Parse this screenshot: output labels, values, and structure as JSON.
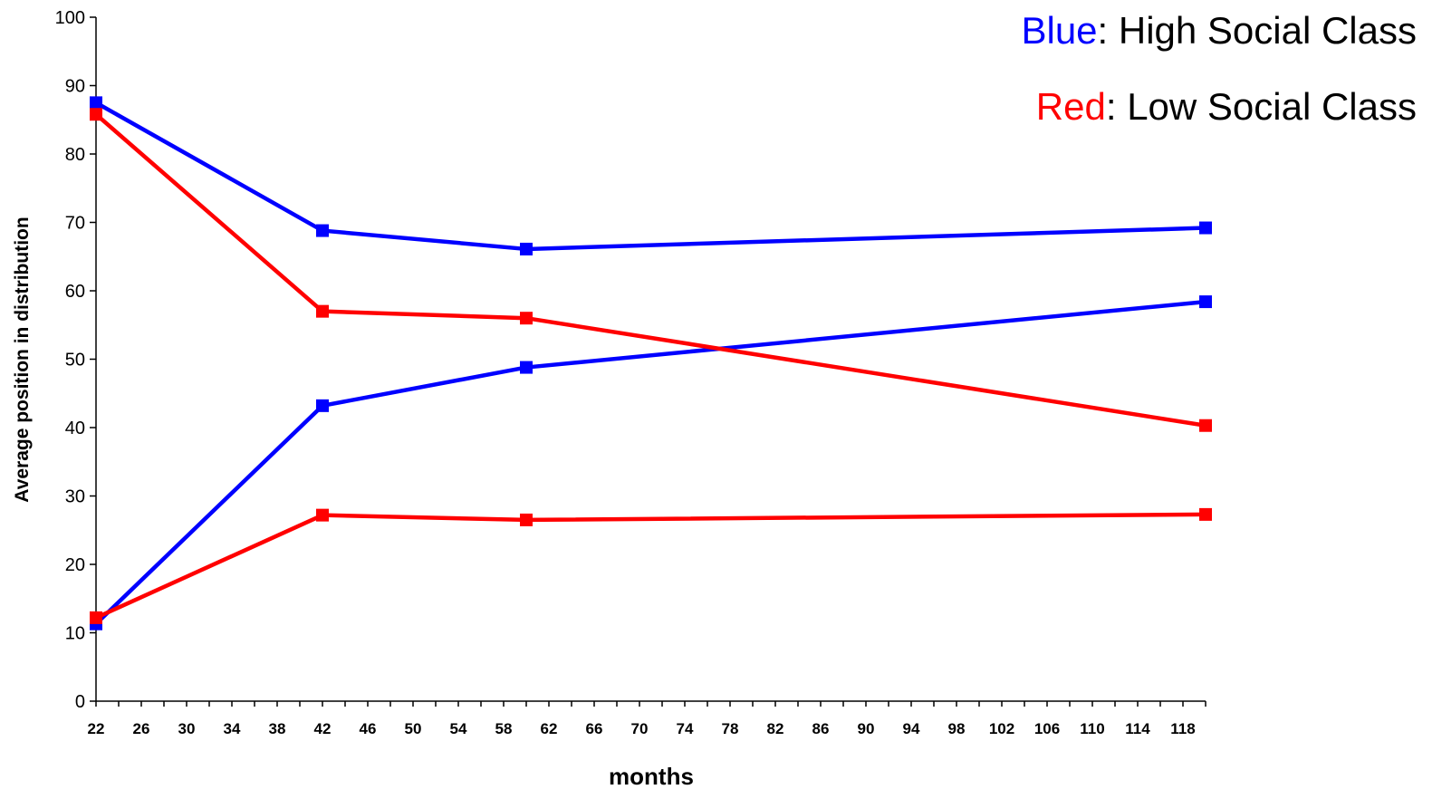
{
  "chart_data": {
    "type": "line",
    "title": "",
    "xlabel": "months",
    "ylabel": "Average position in distribution",
    "xlim": [
      22,
      120
    ],
    "ylim": [
      0,
      100
    ],
    "x_ticks": [
      22,
      26,
      30,
      34,
      38,
      42,
      46,
      50,
      54,
      58,
      62,
      66,
      70,
      74,
      78,
      82,
      86,
      90,
      94,
      98,
      102,
      106,
      110,
      114,
      118
    ],
    "y_ticks": [
      0,
      10,
      20,
      30,
      40,
      50,
      60,
      70,
      80,
      90,
      100
    ],
    "grid": false,
    "legend_placement": "top-right",
    "legend": [
      {
        "key": "Blue",
        "text": ": High Social Class",
        "color": "#0000ff"
      },
      {
        "key": "Red",
        "text": ": Low Social Class",
        "color": "#ff0000"
      }
    ],
    "series": [
      {
        "color": "#0000ff",
        "x": [
          22,
          42,
          60,
          120
        ],
        "values": [
          87.5,
          68.8,
          66.1,
          69.2
        ]
      },
      {
        "color": "#0000ff",
        "x": [
          22,
          42,
          60,
          120
        ],
        "values": [
          11.3,
          43.2,
          48.8,
          58.4
        ]
      },
      {
        "color": "#ff0000",
        "x": [
          22,
          42,
          60,
          120
        ],
        "values": [
          85.8,
          57.0,
          56.0,
          40.3
        ]
      },
      {
        "color": "#ff0000",
        "x": [
          22,
          42,
          60,
          120
        ],
        "values": [
          12.2,
          27.2,
          26.5,
          27.3
        ]
      }
    ]
  }
}
